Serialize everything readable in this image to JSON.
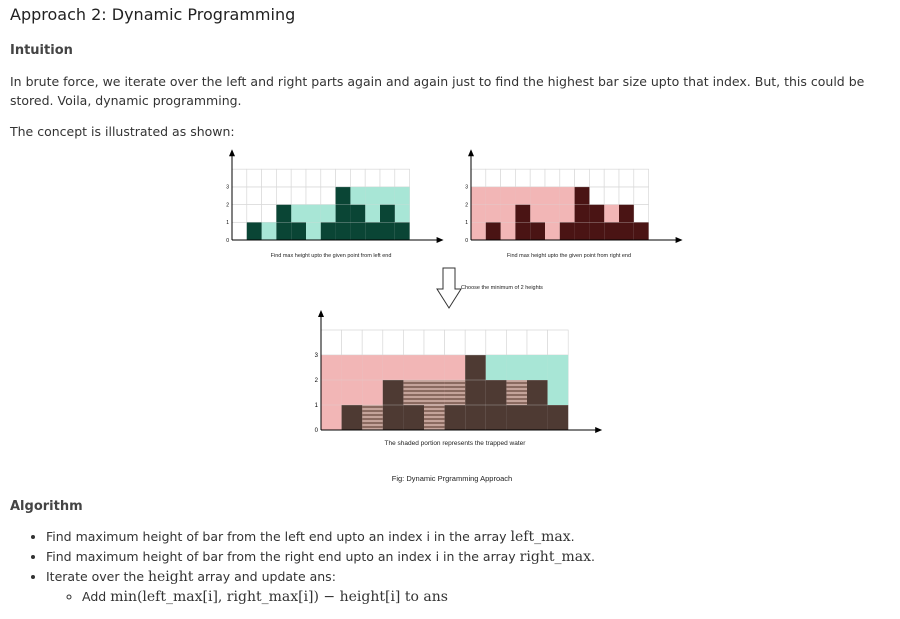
{
  "title": "Approach 2: Dynamic Programming",
  "intuition": {
    "heading": "Intuition",
    "paragraph": "In brute force, we iterate over the left and right parts again and again just to find the highest bar size upto that index. But, this could be stored. Voila, dynamic programming.",
    "illustrated": "The concept is illustrated as shown:"
  },
  "figure": {
    "heights": [
      0,
      1,
      0,
      2,
      1,
      0,
      1,
      3,
      2,
      1,
      2,
      1
    ],
    "left_max": [
      0,
      1,
      1,
      2,
      2,
      2,
      2,
      3,
      3,
      3,
      3,
      3
    ],
    "right_max": [
      3,
      3,
      3,
      3,
      3,
      3,
      3,
      3,
      2,
      2,
      2,
      1
    ],
    "y_ticks": [
      "0",
      "1",
      "2",
      "3"
    ],
    "caption_left": "Find max height upto the given point from left end",
    "caption_right": "Find max height upto the given point from right end",
    "arrow_label": "Choose the minimum of 2 heights",
    "caption_bottom": "The shaded portion represents the trapped water",
    "fig_caption": "Fig: Dynamic Prgramming Approach",
    "colors": {
      "left_bar": "#0a4535",
      "left_fill": "#a8e6d6",
      "right_bar": "#4a1414",
      "right_fill": "#f2b6b6",
      "bottom_bar": "#4e3a33",
      "water_a": "#c4a39a",
      "water_b": "#8a6a60",
      "grid": "#d9d9d9"
    }
  },
  "algorithm": {
    "heading": "Algorithm",
    "step1_text": "Find maximum height of bar from the left end upto an index i in the array ",
    "step1_math": "left_max",
    "step2_text": "Find maximum height of bar from the right end upto an index i in the array ",
    "step2_math": "right_max",
    "step3_text_a": "Iterate over the ",
    "step3_math": "height",
    "step3_text_b": " array and update ans:",
    "sub_text": "Add ",
    "sub_math": "min(left_max[i], right_max[i]) − height[i]",
    "sub_math_tail": " to ans"
  }
}
